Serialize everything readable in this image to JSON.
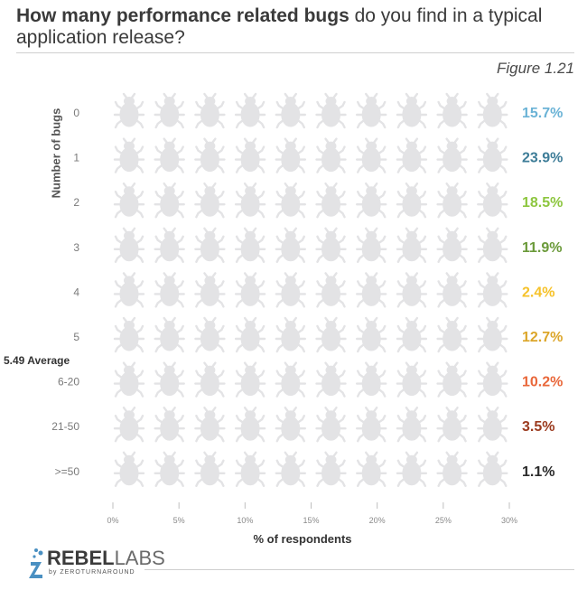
{
  "header": {
    "title_bold": "How many performance related bugs",
    "title_rest": " do you find in a typical application release?",
    "figure": "Figure 1.21"
  },
  "chart_data": {
    "type": "bar",
    "title": "How many performance related bugs do you find in a typical application release?",
    "xlabel": "% of respondents",
    "ylabel": "Number of bugs",
    "xlim": [
      0,
      30
    ],
    "xticks": [
      "0%",
      "5%",
      "10%",
      "15%",
      "20%",
      "25%",
      "30%"
    ],
    "categories": [
      "0",
      "1",
      "2",
      "3",
      "4",
      "5",
      "6-20",
      "21-50",
      ">=50"
    ],
    "values": [
      15.7,
      23.9,
      18.5,
      11.9,
      2.4,
      12.7,
      10.2,
      3.5,
      1.1
    ],
    "value_labels": [
      "15.7%",
      "23.9%",
      "18.5%",
      "11.9%",
      "2.4%",
      "12.7%",
      "10.2%",
      "3.5%",
      "1.1%"
    ],
    "colors": [
      "#6bb3d6",
      "#3e7d98",
      "#8dc63f",
      "#6b9a3a",
      "#f6c22a",
      "#dca62a",
      "#e9673a",
      "#9b3a1e",
      "#2b2b2b"
    ],
    "empty_color": "#e3e3e5",
    "icons_per_row": 10,
    "percent_per_icon": 3,
    "annotation": "5.49 Average"
  },
  "logo": {
    "name_a": "REBEL",
    "name_b": "LABS",
    "sub": "by ZEROTURNAROUND"
  }
}
